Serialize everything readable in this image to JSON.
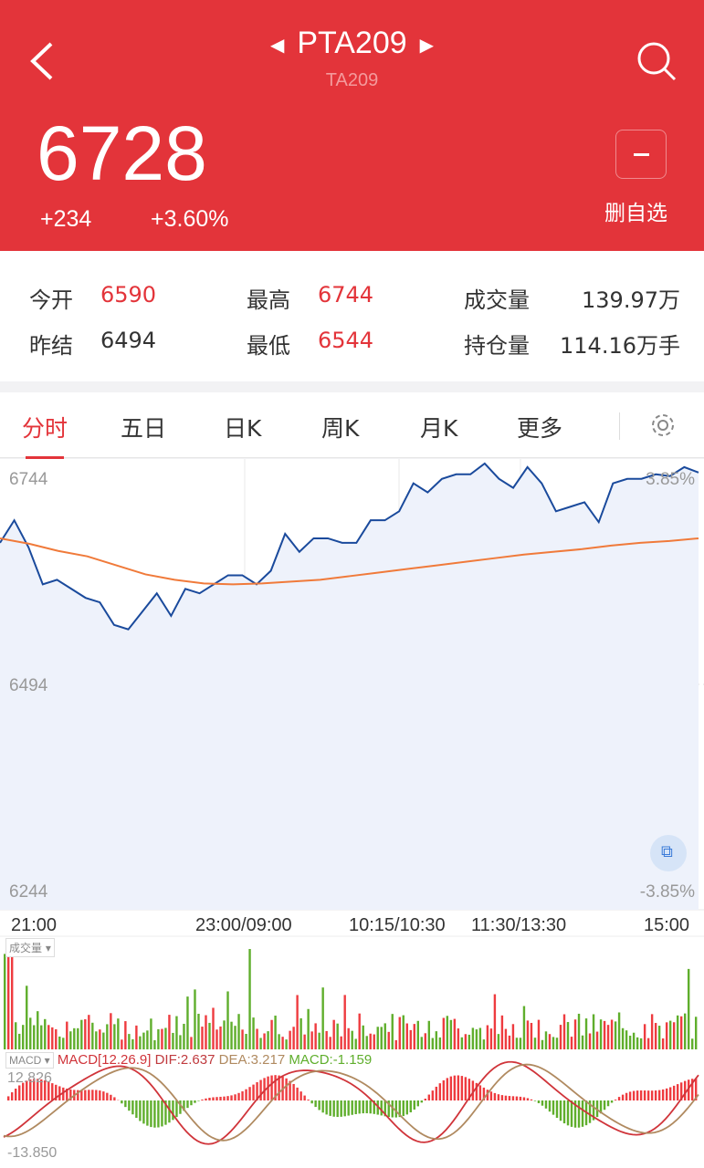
{
  "header": {
    "title": "PTA209",
    "code": "TA209",
    "price": "6728",
    "change": "+234",
    "change_pct": "+3.60%",
    "remove_watch_label": "删自选"
  },
  "stats": [
    {
      "label": "今开",
      "value": "6590",
      "red": true
    },
    {
      "label": "最高",
      "value": "6744",
      "red": true
    },
    {
      "label": "成交量",
      "value": "139.97万",
      "red": false
    },
    {
      "label": "昨结",
      "value": "6494",
      "red": false
    },
    {
      "label": "最低",
      "value": "6544",
      "red": true
    },
    {
      "label": "持仓量",
      "value": "114.16万手",
      "red": false
    }
  ],
  "tabs": [
    {
      "label": "分时",
      "active": true
    },
    {
      "label": "五日"
    },
    {
      "label": "日K"
    },
    {
      "label": "周K"
    },
    {
      "label": "月K"
    },
    {
      "label": "更多"
    }
  ],
  "colors": {
    "brand": "#e3343a",
    "up": "#ee3b3f",
    "down": "#5fae2c",
    "price_line": "#1a4a9c",
    "avg_line": "#f07a3a"
  },
  "chart_data": {
    "type": "line",
    "ylim": [
      6244,
      6744
    ],
    "y_labels": {
      "top": "6744",
      "mid": "6494",
      "bottom": "6244",
      "top_pct": "3.85%",
      "bottom_pct": "-3.85%"
    },
    "x_labels": [
      "21:00",
      "23:00/09:00",
      "10:15/10:30",
      "11:30/13:30",
      "15:00"
    ],
    "price": [
      6651,
      6676,
      6646,
      6605,
      6610,
      6600,
      6590,
      6585,
      6560,
      6555,
      6575,
      6595,
      6570,
      6600,
      6595,
      6605,
      6615,
      6615,
      6605,
      6620,
      6661,
      6641,
      6656,
      6656,
      6651,
      6651,
      6676,
      6676,
      6686,
      6717,
      6707,
      6722,
      6727,
      6727,
      6739,
      6722,
      6712,
      6735,
      6717,
      6686,
      6691,
      6696,
      6674,
      6717,
      6722,
      6722,
      6727,
      6725,
      6735,
      6729
    ],
    "avg": [
      6656,
      6650,
      6642,
      6636,
      6626,
      6616,
      6610,
      6606,
      6605,
      6606,
      6608,
      6610,
      6614,
      6618,
      6622,
      6626,
      6630,
      6634,
      6638,
      6641,
      6644,
      6648,
      6651,
      6653,
      6656
    ],
    "volume_label": "成交量",
    "macd": {
      "selector": "MACD",
      "params": "MACD[12.26.9]",
      "dif": "DIF:2.637",
      "dea": "DEA:3.217",
      "macd": "MACD:-1.159",
      "max": "12.826",
      "min": "-13.850"
    }
  }
}
